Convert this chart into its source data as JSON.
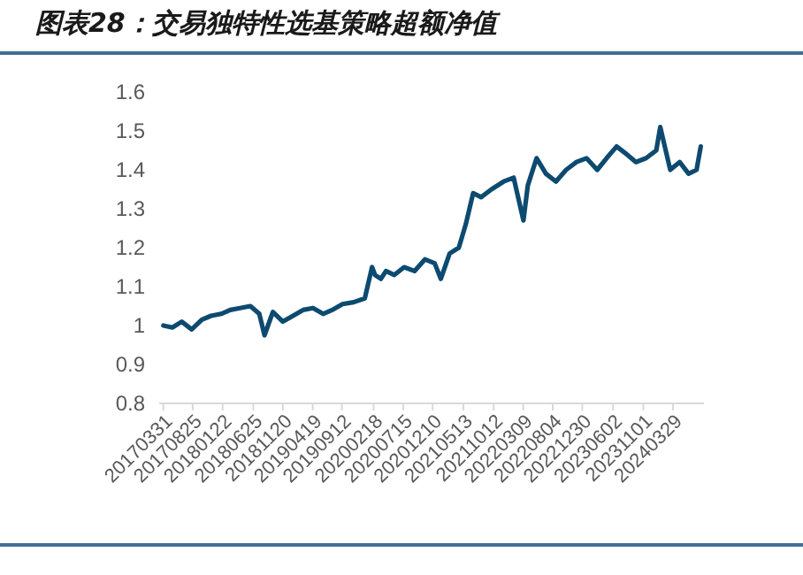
{
  "chart_data": {
    "type": "line",
    "title": "图表28：交易独特性选基策略超额净值",
    "x": [
      "2017-03-31",
      "2017-05-15",
      "2017-07-01",
      "2017-08-20",
      "2017-10-10",
      "2017-11-25",
      "2018-01-15",
      "2018-03-01",
      "2018-04-20",
      "2018-06-10",
      "2018-07-25",
      "2018-08-20",
      "2018-10-01",
      "2018-11-20",
      "2019-01-10",
      "2019-03-01",
      "2019-04-20",
      "2019-06-10",
      "2019-07-25",
      "2019-09-15",
      "2019-11-10",
      "2020-01-05",
      "2020-02-10",
      "2020-02-25",
      "2020-03-25",
      "2020-04-20",
      "2020-06-01",
      "2020-07-20",
      "2020-09-10",
      "2020-11-01",
      "2020-12-20",
      "2021-01-20",
      "2021-03-05",
      "2021-04-20",
      "2021-05-25",
      "2021-07-01",
      "2021-08-10",
      "2021-10-01",
      "2021-12-01",
      "2022-01-20",
      "2022-03-10",
      "2022-04-01",
      "2022-05-15",
      "2022-07-01",
      "2022-08-20",
      "2022-10-10",
      "2022-12-01",
      "2023-01-20",
      "2023-03-15",
      "2023-05-01",
      "2023-06-20",
      "2023-08-10",
      "2023-09-25",
      "2023-11-15",
      "2024-01-05",
      "2024-01-25",
      "2024-03-15",
      "2024-05-01",
      "2024-06-15",
      "2024-07-25",
      "2024-08-15"
    ],
    "series": [
      {
        "color": "#0d4a70",
        "values": [
          1.0,
          0.995,
          1.01,
          0.99,
          1.015,
          1.025,
          1.03,
          1.04,
          1.045,
          1.05,
          1.03,
          0.975,
          1.035,
          1.01,
          1.025,
          1.04,
          1.045,
          1.03,
          1.04,
          1.055,
          1.06,
          1.07,
          1.15,
          1.13,
          1.12,
          1.14,
          1.13,
          1.15,
          1.14,
          1.17,
          1.16,
          1.12,
          1.185,
          1.2,
          1.26,
          1.34,
          1.33,
          1.35,
          1.37,
          1.38,
          1.27,
          1.36,
          1.43,
          1.39,
          1.37,
          1.4,
          1.42,
          1.43,
          1.4,
          1.43,
          1.46,
          1.44,
          1.42,
          1.43,
          1.45,
          1.51,
          1.4,
          1.42,
          1.39,
          1.4,
          1.46
        ]
      }
    ],
    "xlim": [
      "2017-03-10",
      "2024-08-31"
    ],
    "xticks": [
      {
        "value": "2017-03-31",
        "label": "20170331"
      },
      {
        "value": "2017-08-25",
        "label": "20170825"
      },
      {
        "value": "2018-01-22",
        "label": "20180122"
      },
      {
        "value": "2018-06-25",
        "label": "20180625"
      },
      {
        "value": "2018-11-20",
        "label": "20181120"
      },
      {
        "value": "2019-04-19",
        "label": "20190419"
      },
      {
        "value": "2019-09-12",
        "label": "20190912"
      },
      {
        "value": "2020-02-18",
        "label": "20200218"
      },
      {
        "value": "2020-07-15",
        "label": "20200715"
      },
      {
        "value": "2020-12-10",
        "label": "20201210"
      },
      {
        "value": "2021-05-13",
        "label": "20210513"
      },
      {
        "value": "2021-10-12",
        "label": "20211012"
      },
      {
        "value": "2022-03-09",
        "label": "20220309"
      },
      {
        "value": "2022-08-04",
        "label": "20220804"
      },
      {
        "value": "2022-12-30",
        "label": "20221230"
      },
      {
        "value": "2023-06-02",
        "label": "20230602"
      },
      {
        "value": "2023-11-01",
        "label": "20231101"
      },
      {
        "value": "2024-03-29",
        "label": "20240329"
      }
    ],
    "ylim": [
      0.8,
      1.6
    ],
    "yticks": [
      0.8,
      0.9,
      1,
      1.1,
      1.2,
      1.3,
      1.4,
      1.5,
      1.6
    ],
    "grid": false,
    "line_style": "solid",
    "marker": "none"
  }
}
